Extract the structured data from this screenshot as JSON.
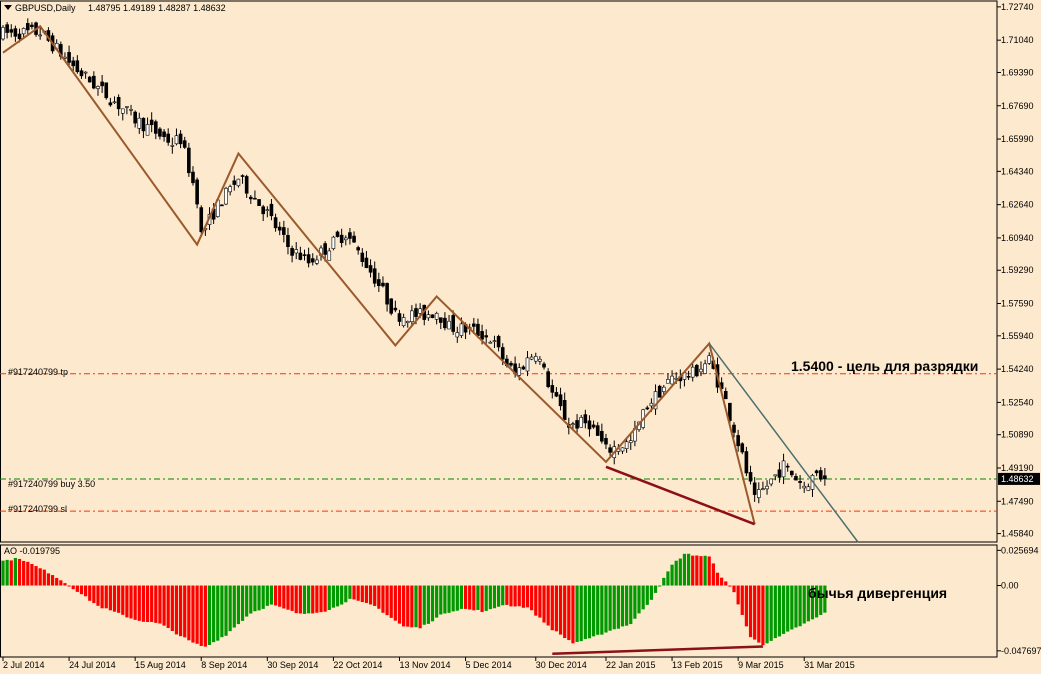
{
  "header": {
    "title": "GBPUSD,Daily",
    "ohlc": "1.48795 1.49189 1.48287 1.48632",
    "subtitle": "AO -0.019795"
  },
  "annotations": {
    "target": "1.5400 - цель для разрядки",
    "divergence": "бычья дивергенция",
    "tp_label": "#917240799 tp",
    "buy_label": "#917240799 buy 3.50",
    "sl_label": "#917240799 sl",
    "current_price": "1.48632"
  },
  "colors": {
    "background": "#fde9cd",
    "bullish_bar": "#009900",
    "bearish_bar": "#ff0000",
    "trend_line": "#9b5a2c",
    "resistance_line": "#4f6e6e",
    "divergence_line": "#8b1018",
    "tp_sl_level": "#ff3300",
    "buy_level": "#008800"
  },
  "chart_data": [
    {
      "type": "candlestick",
      "title": "GBPUSD,Daily",
      "price_ticks": [
        "1.72740",
        "1.71040",
        "1.69390",
        "1.67690",
        "1.65990",
        "1.64340",
        "1.62640",
        "1.60940",
        "1.59290",
        "1.57590",
        "1.55940",
        "1.54240",
        "1.52540",
        "1.50890",
        "1.49190",
        "1.47490",
        "1.45840"
      ],
      "ylim": [
        1.4541,
        1.7304
      ],
      "x_ticks": [
        "2 Jul 2014",
        "24 Jul 2014",
        "15 Aug 2014",
        "8 Sep 2014",
        "30 Sep 2014",
        "22 Oct 2014",
        "13 Nov 2014",
        "5 Dec 2014",
        "30 Dec 2014",
        "22 Jan 2015",
        "13 Feb 2015",
        "9 Mar 2015",
        "31 Mar 2015"
      ],
      "levels": {
        "tp": 1.54,
        "buy": 1.4863,
        "sl": 1.4699,
        "current": 1.48632
      },
      "zigzag": [
        {
          "date": "2014-07-02",
          "price": 1.704
        },
        {
          "date": "2014-07-15",
          "price": 1.7175
        },
        {
          "date": "2014-09-05",
          "price": 1.606
        },
        {
          "date": "2014-09-19",
          "price": 1.6525
        },
        {
          "date": "2014-11-12",
          "price": 1.5545
        },
        {
          "date": "2014-11-26",
          "price": 1.5795
        },
        {
          "date": "2015-01-22",
          "price": 1.495
        },
        {
          "date": "2015-02-26",
          "price": 1.5555
        },
        {
          "date": "2015-03-13",
          "price": 1.4632
        }
      ],
      "resistance_line": [
        {
          "date": "2015-02-26",
          "price": 1.5555
        },
        {
          "date": "2015-04-17",
          "price": 1.4541
        }
      ],
      "price_divergence_line": [
        {
          "date": "2015-01-22",
          "price": 1.4925
        },
        {
          "date": "2015-03-13",
          "price": 1.4632
        }
      ],
      "anchors": [
        {
          "date": "2014-07-02",
          "price": 1.714
        },
        {
          "date": "2014-07-15",
          "price": 1.7145
        },
        {
          "date": "2014-07-28",
          "price": 1.695
        },
        {
          "date": "2014-08-08",
          "price": 1.679
        },
        {
          "date": "2014-08-15",
          "price": 1.67
        },
        {
          "date": "2014-08-28",
          "price": 1.658
        },
        {
          "date": "2014-09-01",
          "price": 1.66
        },
        {
          "date": "2014-09-05",
          "price": 1.63
        },
        {
          "date": "2014-09-08",
          "price": 1.611
        },
        {
          "date": "2014-09-12",
          "price": 1.626
        },
        {
          "date": "2014-09-19",
          "price": 1.64
        },
        {
          "date": "2014-09-30",
          "price": 1.622
        },
        {
          "date": "2014-10-07",
          "price": 1.605
        },
        {
          "date": "2014-10-14",
          "price": 1.597
        },
        {
          "date": "2014-10-22",
          "price": 1.607
        },
        {
          "date": "2014-10-27",
          "price": 1.612
        },
        {
          "date": "2014-11-03",
          "price": 1.596
        },
        {
          "date": "2014-11-07",
          "price": 1.582
        },
        {
          "date": "2014-11-12",
          "price": 1.57
        },
        {
          "date": "2014-11-21",
          "price": 1.57
        },
        {
          "date": "2014-11-26",
          "price": 1.572
        },
        {
          "date": "2014-12-01",
          "price": 1.564
        },
        {
          "date": "2014-12-09",
          "price": 1.562
        },
        {
          "date": "2014-12-15",
          "price": 1.558
        },
        {
          "date": "2014-12-19",
          "price": 1.545
        },
        {
          "date": "2014-12-23",
          "price": 1.54
        },
        {
          "date": "2014-12-30",
          "price": 1.552
        },
        {
          "date": "2015-01-05",
          "price": 1.53
        },
        {
          "date": "2015-01-09",
          "price": 1.514
        },
        {
          "date": "2015-01-16",
          "price": 1.515
        },
        {
          "date": "2015-01-22",
          "price": 1.501
        },
        {
          "date": "2015-01-30",
          "price": 1.505
        },
        {
          "date": "2015-02-05",
          "price": 1.524
        },
        {
          "date": "2015-02-13",
          "price": 1.538
        },
        {
          "date": "2015-02-20",
          "price": 1.54
        },
        {
          "date": "2015-02-26",
          "price": 1.547
        },
        {
          "date": "2015-03-04",
          "price": 1.526
        },
        {
          "date": "2015-03-09",
          "price": 1.505
        },
        {
          "date": "2015-03-13",
          "price": 1.475
        },
        {
          "date": "2015-03-18",
          "price": 1.483
        },
        {
          "date": "2015-03-24",
          "price": 1.493
        },
        {
          "date": "2015-03-31",
          "price": 1.483
        },
        {
          "date": "2015-04-03",
          "price": 1.489
        },
        {
          "date": "2015-04-07",
          "price": 1.4863
        }
      ],
      "last_candle": {
        "open": 1.48795,
        "high": 1.49189,
        "low": 1.48287,
        "close": 1.48632
      }
    },
    {
      "type": "bar",
      "title": "AO -0.019795",
      "y_ticks": [
        "0.025694",
        "0.00",
        "-0.047697"
      ],
      "ylim": [
        -0.0522,
        0.0296
      ],
      "last_value": -0.019795,
      "anchors": [
        {
          "date": "2014-07-02",
          "value": 0.018
        },
        {
          "date": "2014-07-08",
          "value": 0.02
        },
        {
          "date": "2014-07-18",
          "value": 0.008
        },
        {
          "date": "2014-07-25",
          "value": -0.002
        },
        {
          "date": "2014-08-04",
          "value": -0.015
        },
        {
          "date": "2014-08-15",
          "value": -0.025
        },
        {
          "date": "2014-08-25",
          "value": -0.028
        },
        {
          "date": "2014-09-04",
          "value": -0.042
        },
        {
          "date": "2014-09-09",
          "value": -0.045
        },
        {
          "date": "2014-09-16",
          "value": -0.036
        },
        {
          "date": "2014-09-24",
          "value": -0.02
        },
        {
          "date": "2014-10-01",
          "value": -0.014
        },
        {
          "date": "2014-10-10",
          "value": -0.021
        },
        {
          "date": "2014-10-21",
          "value": -0.018
        },
        {
          "date": "2014-10-28",
          "value": -0.01
        },
        {
          "date": "2014-11-05",
          "value": -0.015
        },
        {
          "date": "2014-11-14",
          "value": -0.03
        },
        {
          "date": "2014-11-20",
          "value": -0.031
        },
        {
          "date": "2014-11-28",
          "value": -0.02
        },
        {
          "date": "2014-12-04",
          "value": -0.017
        },
        {
          "date": "2014-12-12",
          "value": -0.019
        },
        {
          "date": "2014-12-18",
          "value": -0.014
        },
        {
          "date": "2014-12-26",
          "value": -0.016
        },
        {
          "date": "2015-01-05",
          "value": -0.032
        },
        {
          "date": "2015-01-12",
          "value": -0.042
        },
        {
          "date": "2015-01-16",
          "value": -0.039
        },
        {
          "date": "2015-01-22",
          "value": -0.034
        },
        {
          "date": "2015-01-30",
          "value": -0.028
        },
        {
          "date": "2015-02-06",
          "value": -0.01
        },
        {
          "date": "2015-02-13",
          "value": 0.015
        },
        {
          "date": "2015-02-18",
          "value": 0.023
        },
        {
          "date": "2015-02-26",
          "value": 0.021
        },
        {
          "date": "2015-03-02",
          "value": 0.01
        },
        {
          "date": "2015-03-06",
          "value": -0.005
        },
        {
          "date": "2015-03-12",
          "value": -0.038
        },
        {
          "date": "2015-03-17",
          "value": -0.043
        },
        {
          "date": "2015-03-20",
          "value": -0.039
        },
        {
          "date": "2015-03-27",
          "value": -0.031
        },
        {
          "date": "2015-04-02",
          "value": -0.025
        },
        {
          "date": "2015-04-07",
          "value": -0.02
        }
      ],
      "divergence_line": [
        {
          "date": "2015-01-05",
          "value": -0.0498
        },
        {
          "date": "2015-03-17",
          "value": -0.0445
        }
      ]
    }
  ]
}
